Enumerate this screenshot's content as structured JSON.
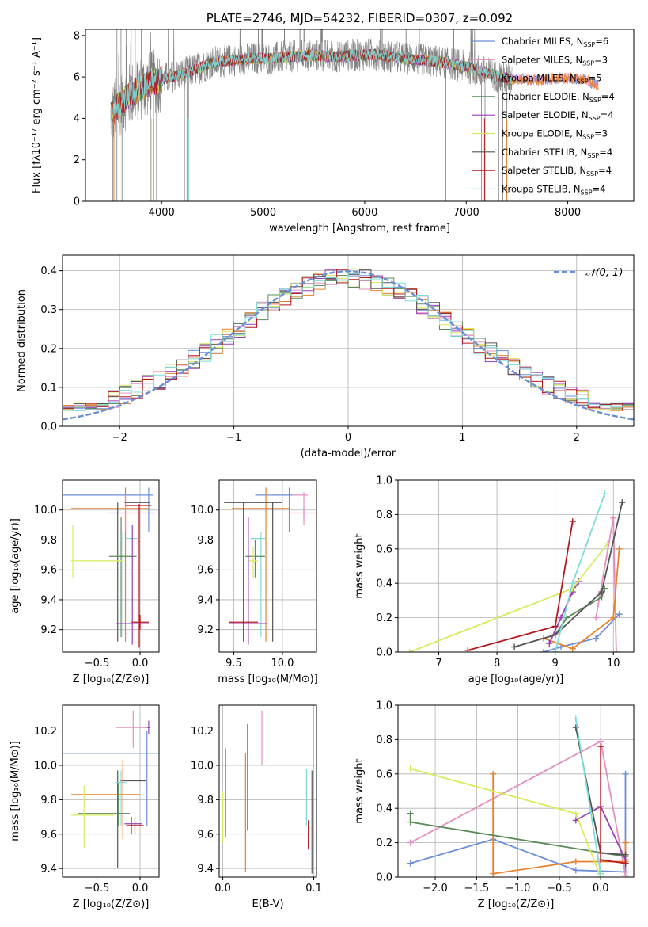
{
  "chart_data": [
    {
      "id": "spectrum",
      "type": "line",
      "title": "PLATE=2746, MJD=54232, FIBERID=0307, z=0.092",
      "xlabel": "wavelength [Angstrom, rest frame]",
      "ylabel": "Flux [fλ10⁻¹⁷ erg cm⁻² s⁻¹ A⁻¹]",
      "xlim": [
        3250,
        8650
      ],
      "ylim": [
        0,
        8.3
      ],
      "xticks": [
        4000,
        5000,
        6000,
        7000,
        8000
      ],
      "yticks": [
        0,
        2,
        4,
        6,
        8
      ],
      "legend": "upper-right",
      "series": [
        {
          "name": "Chabrier MILES, N",
          "sub": "SSP",
          "suffix": "=6",
          "color": "#6a8fd8"
        },
        {
          "name": "Salpeter MILES, N",
          "sub": "SSP",
          "suffix": "=3",
          "color": "#e58fbf"
        },
        {
          "name": "Kroupa MILES, N",
          "sub": "SSP",
          "suffix": "=5",
          "color": "#e8822a"
        },
        {
          "name": "Chabrier ELODIE, N",
          "sub": "SSP",
          "suffix": "=4",
          "color": "#5a8a5a"
        },
        {
          "name": "Salpeter ELODIE, N",
          "sub": "SSP",
          "suffix": "=4",
          "color": "#9b3fb5"
        },
        {
          "name": "Kroupa ELODIE, N",
          "sub": "SSP",
          "suffix": "=3",
          "color": "#d9ea5a"
        },
        {
          "name": "Chabrier STELIB, N",
          "sub": "SSP",
          "suffix": "=4",
          "color": "#555555"
        },
        {
          "name": "Salpeter STELIB, N",
          "sub": "SSP",
          "suffix": "=4",
          "color": "#b5181e"
        },
        {
          "name": "Kroupa STELIB, N",
          "sub": "SSP",
          "suffix": "=4",
          "color": "#7fdada"
        }
      ],
      "data_color": "#808080",
      "continuum": [
        [
          3500,
          4.2
        ],
        [
          3650,
          5.0
        ],
        [
          3800,
          5.5
        ],
        [
          3950,
          5.8
        ],
        [
          4100,
          6.0
        ],
        [
          4300,
          6.3
        ],
        [
          4500,
          6.7
        ],
        [
          4700,
          6.8
        ],
        [
          4900,
          6.9
        ],
        [
          5100,
          6.9
        ],
        [
          5300,
          7.0
        ],
        [
          5500,
          7.05
        ],
        [
          5700,
          7.0
        ],
        [
          5900,
          7.05
        ],
        [
          6100,
          7.1
        ],
        [
          6300,
          6.95
        ],
        [
          6500,
          6.85
        ],
        [
          6700,
          6.75
        ],
        [
          6900,
          6.6
        ],
        [
          7100,
          6.35
        ],
        [
          7300,
          6.05
        ],
        [
          7450,
          5.9
        ]
      ],
      "model_continuum": [
        [
          7450,
          5.9
        ],
        [
          7700,
          5.85
        ],
        [
          7950,
          5.95
        ],
        [
          8150,
          5.9
        ],
        [
          8300,
          5.6
        ]
      ],
      "spikes_down": [
        3520,
        3560,
        3610,
        3890,
        3920,
        3950,
        4225,
        4250,
        4265,
        4290,
        6800,
        7150,
        7185,
        7320,
        7360,
        7400
      ],
      "spikes_up": [
        3560,
        3600,
        3650,
        3700,
        3740,
        3800
      ]
    },
    {
      "id": "residuals",
      "type": "step",
      "xlabel": "(data-model)/error",
      "ylabel": "Normed distribution",
      "xlim": [
        -2.5,
        2.5
      ],
      "ylim": [
        0,
        0.44
      ],
      "xticks": [
        -2,
        -1,
        0,
        1,
        2
      ],
      "yticks": [
        0.0,
        0.1,
        0.2,
        0.3,
        0.4
      ],
      "grid": true,
      "legend": "upper-right",
      "gaussian": {
        "name": "𝒩(0, 1)",
        "color": "#6a8fd8"
      },
      "bins": {
        "start": -2.5,
        "width": 0.1,
        "count": 50
      }
    },
    {
      "id": "age-vs-Z",
      "type": "errorbar",
      "xlabel": "Z [log₁₀(Z/Z⊙)]",
      "ylabel": "age  [log₁₀(age/yr)]",
      "xlim": [
        -0.9,
        0.22
      ],
      "ylim": [
        9.05,
        10.2
      ],
      "xticks": [
        -0.5,
        0.0
      ],
      "yticks": [
        9.2,
        9.4,
        9.6,
        9.8,
        10.0
      ],
      "grid": true,
      "points": [
        {
          "x": -0.55,
          "xerr": 0.7,
          "y": 10.1,
          "yerr": 0.0,
          "color": "#6a8fd8",
          "v": [
            0.1,
            9.85,
            10.15
          ]
        },
        {
          "x": -0.35,
          "xerr": 0.45,
          "y": 10.01,
          "yerr": 0.0,
          "color": "#e8822a",
          "v": [
            -0.17,
            9.12,
            10.15
          ]
        },
        {
          "x": -0.1,
          "xerr": 0.27,
          "y": 9.98,
          "yerr": 0.0,
          "color": "#e58fbf",
          "v": [
            -0.17,
            9.85,
            10.1
          ]
        },
        {
          "x": -0.03,
          "xerr": 0.15,
          "y": 10.05,
          "yerr": 0.0,
          "color": "#555555",
          "v": [
            -0.26,
            9.12,
            10.05
          ]
        },
        {
          "x": -0.02,
          "xerr": 0.15,
          "y": 10.03,
          "yerr": 0.0,
          "color": "#b5181e",
          "v": [
            -0.01,
            9.08,
            10.04
          ]
        },
        {
          "x": -0.1,
          "xerr": 0.07,
          "y": 9.81,
          "yerr": 0.0,
          "color": "#7fdada",
          "v": [
            -0.2,
            9.15,
            9.85
          ]
        },
        {
          "x": -0.2,
          "xerr": 0.16,
          "y": 9.69,
          "yerr": 0.0,
          "color": "#5a8a5a",
          "v": [
            -0.22,
            9.15,
            9.95
          ]
        },
        {
          "x": -0.5,
          "xerr": 0.3,
          "y": 9.66,
          "yerr": 0.0,
          "color": "#d9ea5a",
          "v": [
            -0.78,
            9.55,
            9.9
          ]
        },
        {
          "x": -0.09,
          "xerr": 0.19,
          "y": 9.24,
          "yerr": 0.0,
          "color": "#9b3fb5",
          "v": [
            -0.09,
            9.1,
            9.9
          ]
        },
        {
          "x": 0.0,
          "xerr": 0.1,
          "y": 9.25,
          "yerr": 0.0,
          "color": "#b5181e",
          "v": [
            0.0,
            9.2,
            9.3
          ]
        }
      ]
    },
    {
      "id": "age-vs-mass",
      "type": "errorbar",
      "xlabel": "mass [log₁₀(M/M⊙)]",
      "xlim": [
        9.35,
        10.35
      ],
      "ylim": [
        9.05,
        10.2
      ],
      "xticks": [
        9.5,
        10.0
      ],
      "yticks": [
        9.2,
        9.4,
        9.6,
        9.8,
        10.0
      ],
      "grid": true,
      "points": [
        {
          "x": 9.92,
          "xerr": 0.2,
          "y": 10.1,
          "color": "#6a8fd8",
          "v": [
            10.07,
            9.85,
            10.15
          ]
        },
        {
          "x": 10.18,
          "xerr": 0.08,
          "y": 10.1,
          "color": "#e58fbf",
          "v": [
            10.22,
            9.9,
            10.12
          ]
        },
        {
          "x": 10.22,
          "xerr": 0.15,
          "y": 9.98,
          "color": "#e58fbf",
          "v": [
            10.22,
            9.95,
            10.02
          ]
        },
        {
          "x": 9.78,
          "xerr": 0.3,
          "y": 10.01,
          "color": "#e8822a",
          "v": [
            9.83,
            9.12,
            10.15
          ]
        },
        {
          "x": 9.7,
          "xerr": 0.3,
          "y": 10.05,
          "color": "#555555",
          "v": [
            9.9,
            9.12,
            10.05
          ]
        },
        {
          "x": 9.75,
          "xerr": 0.08,
          "y": 9.81,
          "color": "#7fdada",
          "v": [
            9.78,
            9.15,
            9.85
          ]
        },
        {
          "x": 9.72,
          "xerr": 0.1,
          "y": 9.69,
          "color": "#5a8a5a",
          "v": [
            9.72,
            9.55,
            9.8
          ]
        },
        {
          "x": 9.7,
          "xerr": 0.05,
          "y": 9.66,
          "color": "#d9ea5a",
          "v": [
            9.7,
            9.55,
            9.75
          ]
        },
        {
          "x": 9.65,
          "xerr": 0.2,
          "y": 9.24,
          "color": "#9b3fb5",
          "v": [
            9.65,
            9.1,
            9.95
          ]
        },
        {
          "x": 9.6,
          "xerr": 0.15,
          "y": 9.25,
          "color": "#b5181e",
          "v": [
            9.6,
            9.12,
            10.05
          ]
        }
      ]
    },
    {
      "id": "massweight-vs-age",
      "type": "line",
      "xlabel": "age  [log₁₀(age/yr)]",
      "ylabel": "mass weight",
      "xlim": [
        6.3,
        10.35
      ],
      "ylim": [
        0,
        1.0
      ],
      "xticks": [
        7,
        8,
        9,
        10
      ],
      "yticks": [
        0.0,
        0.2,
        0.4,
        0.6,
        0.8,
        1.0
      ],
      "grid": true,
      "series": [
        {
          "color": "#6a8fd8",
          "pts": [
            [
              8.8,
              0.0
            ],
            [
              9.1,
              0.03
            ],
            [
              9.7,
              0.08
            ],
            [
              10.1,
              0.22
            ]
          ]
        },
        {
          "color": "#e58fbf",
          "pts": [
            [
              9.7,
              0.2
            ],
            [
              10.0,
              0.78
            ],
            [
              10.05,
              0.0
            ]
          ]
        },
        {
          "color": "#e8822a",
          "pts": [
            [
              8.8,
              0.08
            ],
            [
              9.3,
              0.02
            ],
            [
              10.0,
              0.2
            ],
            [
              10.1,
              0.6
            ]
          ]
        },
        {
          "color": "#5a8a5a",
          "pts": [
            [
              9.0,
              0.1
            ],
            [
              9.2,
              0.2
            ],
            [
              9.8,
              0.32
            ],
            [
              9.85,
              0.37
            ]
          ]
        },
        {
          "color": "#9b3fb5",
          "pts": [
            [
              8.9,
              0.05
            ],
            [
              9.1,
              0.2
            ],
            [
              9.3,
              0.35
            ],
            [
              9.4,
              0.41
            ]
          ]
        },
        {
          "color": "#d9ea5a",
          "pts": [
            [
              6.5,
              0.0
            ],
            [
              9.3,
              0.37
            ],
            [
              9.9,
              0.63
            ]
          ]
        },
        {
          "color": "#555555",
          "pts": [
            [
              8.3,
              0.03
            ],
            [
              9.0,
              0.1
            ],
            [
              9.8,
              0.35
            ],
            [
              10.15,
              0.87
            ]
          ]
        },
        {
          "color": "#b5181e",
          "pts": [
            [
              7.5,
              0.01
            ],
            [
              9.0,
              0.15
            ],
            [
              9.3,
              0.76
            ]
          ]
        },
        {
          "color": "#7fdada",
          "pts": [
            [
              9.0,
              0.0
            ],
            [
              9.3,
              0.4
            ],
            [
              9.85,
              0.92
            ]
          ]
        }
      ]
    },
    {
      "id": "mass-vs-Z",
      "type": "errorbar",
      "xlabel": "Z [log₁₀(Z/Z⊙)]",
      "ylabel": "mass [log₁₀(M/M⊙)]",
      "xlim": [
        -0.9,
        0.22
      ],
      "ylim": [
        9.35,
        10.35
      ],
      "xticks": [
        -0.5,
        0.0
      ],
      "yticks": [
        9.4,
        9.6,
        9.8,
        10.0,
        10.2
      ],
      "grid": true,
      "points": [
        {
          "x": -0.08,
          "xerr": 0.2,
          "y": 10.22,
          "color": "#e58fbf",
          "v": [
            -0.08,
            10.1,
            10.32
          ]
        },
        {
          "x": 0.1,
          "xerr": 0.02,
          "y": 10.22,
          "color": "#9b3fb5",
          "v": [
            0.1,
            10.18,
            10.26
          ]
        },
        {
          "x": -0.38,
          "xerr": 0.72,
          "y": 10.07,
          "color": "#6a8fd8",
          "v": [
            0.08,
            9.65,
            10.2
          ]
        },
        {
          "x": -0.08,
          "xerr": 0.15,
          "y": 9.91,
          "color": "#555555",
          "v": [
            -0.26,
            9.4,
            9.97
          ]
        },
        {
          "x": -0.22,
          "xerr": 0.07,
          "y": 9.9,
          "color": "#7fdada",
          "v": [
            -0.22,
            9.65,
            9.97
          ]
        },
        {
          "x": -0.4,
          "xerr": 0.4,
          "y": 9.83,
          "color": "#e8822a",
          "v": [
            -0.2,
            9.57,
            10.03
          ]
        },
        {
          "x": -0.42,
          "xerr": 0.3,
          "y": 9.72,
          "color": "#5a8a5a",
          "v": [
            -0.25,
            9.65,
            9.9
          ]
        },
        {
          "x": -0.55,
          "xerr": 0.25,
          "y": 9.71,
          "color": "#d9ea5a",
          "v": [
            -0.65,
            9.52,
            9.88
          ]
        },
        {
          "x": -0.08,
          "xerr": 0.1,
          "y": 9.66,
          "color": "#9b3fb5",
          "v": [
            -0.1,
            9.6,
            9.7
          ]
        },
        {
          "x": -0.06,
          "xerr": 0.1,
          "y": 9.65,
          "color": "#b5181e",
          "v": [
            -0.06,
            9.6,
            9.7
          ]
        }
      ]
    },
    {
      "id": "mass-vs-ebv",
      "type": "errorbar",
      "xlabel": "E(B-V)",
      "xlim": [
        -0.004,
        0.103
      ],
      "ylim": [
        9.35,
        10.35
      ],
      "xticks": [
        0.0,
        0.1
      ],
      "yticks": [
        9.4,
        9.6,
        9.8,
        10.0,
        10.2
      ],
      "grid": true,
      "points": [
        {
          "x": 0.0,
          "color": "#d9ea5a",
          "v": [
            9.55,
            9.85
          ]
        },
        {
          "x": 0.003,
          "color": "#9b3fb5",
          "v": [
            9.58,
            10.1
          ]
        },
        {
          "x": 0.025,
          "color": "#e8822a",
          "v": [
            9.38,
            10.07
          ]
        },
        {
          "x": 0.027,
          "color": "#6a8fd8",
          "v": [
            9.62,
            10.24
          ]
        },
        {
          "x": 0.043,
          "color": "#e58fbf",
          "v": [
            10.0,
            10.32
          ]
        },
        {
          "x": 0.092,
          "color": "#7fdada",
          "v": [
            9.65,
            9.98
          ]
        },
        {
          "x": 0.094,
          "color": "#b5181e",
          "v": [
            9.51,
            9.68
          ]
        },
        {
          "x": 0.098,
          "color": "#555555",
          "v": [
            9.37,
            9.97
          ]
        }
      ]
    },
    {
      "id": "massweight-vs-Z",
      "type": "line",
      "xlabel": "Z [log₁₀(Z/Z⊙)]",
      "ylabel": "mass weight",
      "xlim": [
        -2.45,
        0.4
      ],
      "ylim": [
        0,
        1.0
      ],
      "xticks": [
        -2.0,
        -1.5,
        -1.0,
        -0.5,
        0.0
      ],
      "yticks": [
        0.0,
        0.2,
        0.4,
        0.6,
        0.8,
        1.0
      ],
      "grid": true,
      "series": [
        {
          "color": "#6a8fd8",
          "pts": [
            [
              -2.3,
              0.08
            ],
            [
              -1.3,
              0.22
            ],
            [
              -0.3,
              0.04
            ],
            [
              0.3,
              0.03
            ],
            [
              0.3,
              0.6
            ]
          ]
        },
        {
          "color": "#e58fbf",
          "pts": [
            [
              -2.3,
              0.2
            ],
            [
              0.0,
              0.79
            ],
            [
              0.3,
              0.01
            ]
          ]
        },
        {
          "color": "#e8822a",
          "pts": [
            [
              -1.3,
              0.6
            ],
            [
              -1.3,
              0.02
            ],
            [
              -0.3,
              0.09
            ],
            [
              0.3,
              0.09
            ],
            [
              0.3,
              0.2
            ]
          ]
        },
        {
          "color": "#5a8a5a",
          "pts": [
            [
              -2.3,
              0.37
            ],
            [
              -2.3,
              0.32
            ],
            [
              0.3,
              0.12
            ]
          ]
        },
        {
          "color": "#9b3fb5",
          "pts": [
            [
              -0.3,
              0.33
            ],
            [
              0.0,
              0.41
            ],
            [
              0.3,
              0.1
            ]
          ]
        },
        {
          "color": "#d9ea5a",
          "pts": [
            [
              -2.3,
              0.63
            ],
            [
              -0.3,
              0.37
            ],
            [
              0.0,
              0.0
            ]
          ]
        },
        {
          "color": "#555555",
          "pts": [
            [
              -0.3,
              0.87
            ],
            [
              0.0,
              0.14
            ],
            [
              0.3,
              0.13
            ]
          ]
        },
        {
          "color": "#b5181e",
          "pts": [
            [
              0.0,
              0.76
            ],
            [
              0.0,
              0.1
            ],
            [
              0.3,
              0.08
            ]
          ]
        },
        {
          "color": "#7fdada",
          "pts": [
            [
              -0.3,
              0.92
            ],
            [
              0.0,
              0.02
            ]
          ]
        }
      ]
    }
  ]
}
